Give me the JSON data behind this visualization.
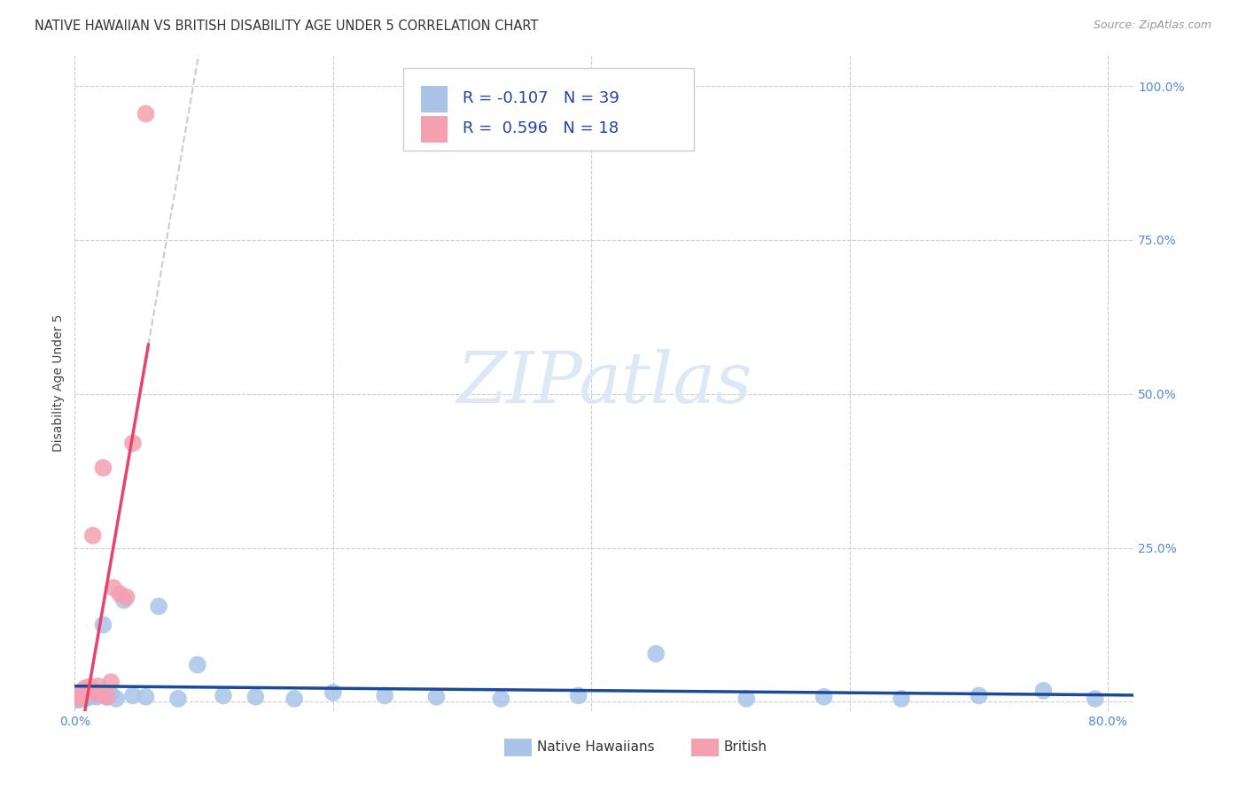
{
  "title": "NATIVE HAWAIIAN VS BRITISH DISABILITY AGE UNDER 5 CORRELATION CHART",
  "source": "Source: ZipAtlas.com",
  "ylabel": "Disability Age Under 5",
  "xlim": [
    0.0,
    0.82
  ],
  "ylim": [
    -0.015,
    1.05
  ],
  "native_hawaiian_R": -0.107,
  "native_hawaiian_N": 39,
  "british_R": 0.596,
  "british_N": 18,
  "native_hawaiian_color": "#aac4e8",
  "native_hawaiian_line_color": "#1a4a99",
  "british_color": "#f4a0b0",
  "british_line_color": "#e8436a",
  "trendline_gray": "#cccccc",
  "native_hawaiians_x": [
    0.002,
    0.003,
    0.004,
    0.005,
    0.006,
    0.007,
    0.008,
    0.009,
    0.01,
    0.011,
    0.013,
    0.015,
    0.017,
    0.019,
    0.022,
    0.025,
    0.028,
    0.032,
    0.038,
    0.045,
    0.055,
    0.065,
    0.08,
    0.095,
    0.115,
    0.14,
    0.17,
    0.2,
    0.24,
    0.28,
    0.33,
    0.39,
    0.45,
    0.52,
    0.58,
    0.64,
    0.7,
    0.75,
    0.79
  ],
  "native_hawaiians_y": [
    0.003,
    0.005,
    0.008,
    0.004,
    0.006,
    0.01,
    0.005,
    0.012,
    0.007,
    0.015,
    0.009,
    0.01,
    0.008,
    0.014,
    0.125,
    0.008,
    0.012,
    0.005,
    0.165,
    0.01,
    0.008,
    0.155,
    0.005,
    0.06,
    0.01,
    0.008,
    0.005,
    0.015,
    0.01,
    0.008,
    0.005,
    0.01,
    0.078,
    0.005,
    0.008,
    0.005,
    0.01,
    0.018,
    0.005
  ],
  "british_x": [
    0.002,
    0.004,
    0.006,
    0.008,
    0.01,
    0.012,
    0.014,
    0.016,
    0.018,
    0.02,
    0.022,
    0.025,
    0.028,
    0.03,
    0.035,
    0.04,
    0.045,
    0.055
  ],
  "british_y": [
    0.005,
    0.012,
    0.01,
    0.022,
    0.018,
    0.025,
    0.27,
    0.015,
    0.025,
    0.012,
    0.38,
    0.008,
    0.032,
    0.185,
    0.175,
    0.17,
    0.42,
    0.955
  ],
  "watermark_text": "ZIPatlas",
  "watermark_color": "#dce8f5",
  "title_fontsize": 10.5,
  "source_fontsize": 9,
  "axis_label_fontsize": 10,
  "tick_fontsize": 10,
  "legend_fontsize": 13
}
